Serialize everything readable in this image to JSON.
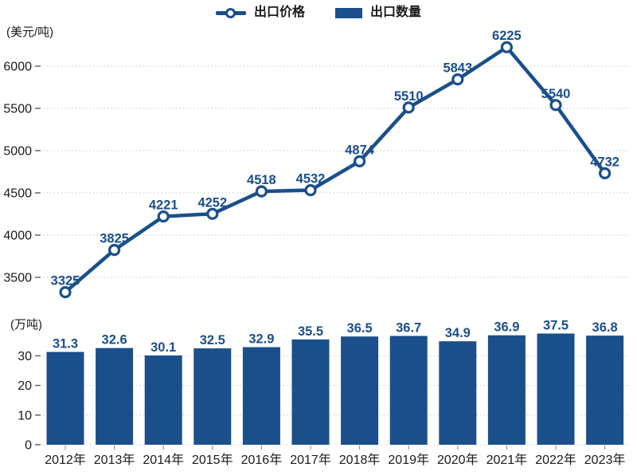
{
  "legend": {
    "price_label": "出口价格",
    "quantity_label": "出口数量"
  },
  "colors": {
    "series_navy": "#1a4f8c",
    "grid_gray": "#c9c9c9",
    "tick_mark": "#666666",
    "axis_text": "#1a1a1a"
  },
  "chart_data": [
    {
      "type": "line",
      "name": "出口价格",
      "unit": "(美元/吨)",
      "categories": [
        "2012年",
        "2013年",
        "2014年",
        "2015年",
        "2016年",
        "2017年",
        "2018年",
        "2019年",
        "2020年",
        "2021年",
        "2022年",
        "2023年"
      ],
      "values": [
        3325,
        3825,
        4221,
        4252,
        4518,
        4532,
        4874,
        5510,
        5843,
        6225,
        5540,
        4732
      ],
      "y_ticks": [
        3500,
        4000,
        4500,
        5000,
        5500,
        6000
      ],
      "ylim": [
        3500,
        6000
      ],
      "grid": "dotted",
      "legend_position": "top",
      "marker": "open-circle",
      "data_labels": true
    },
    {
      "type": "bar",
      "name": "出口数量",
      "unit": "(万吨)",
      "categories": [
        "2012年",
        "2013年",
        "2014年",
        "2015年",
        "2016年",
        "2017年",
        "2018年",
        "2019年",
        "2020年",
        "2021年",
        "2022年",
        "2023年"
      ],
      "values": [
        31.3,
        32.6,
        30.1,
        32.5,
        32.9,
        35.5,
        36.5,
        36.7,
        34.9,
        36.9,
        37.5,
        36.8
      ],
      "y_ticks": [
        0,
        10,
        20,
        30
      ],
      "ylim": [
        0,
        40
      ],
      "grid": "dotted",
      "data_labels": true
    }
  ]
}
